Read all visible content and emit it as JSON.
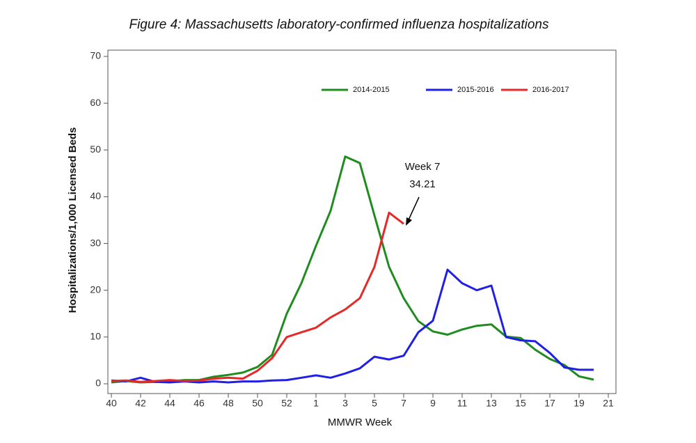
{
  "chart_data": {
    "type": "line",
    "title": "Figure 4: Massachusetts laboratory-confirmed influenza hospitalizations",
    "x_label": "MMWR Week",
    "y_label": "Hospitalizations/1,000 Licensed Beds",
    "categories": [
      40,
      null,
      42,
      null,
      44,
      null,
      46,
      null,
      48,
      null,
      50,
      null,
      52,
      null,
      1,
      null,
      3,
      null,
      5,
      null,
      7,
      null,
      9,
      null,
      11,
      null,
      13,
      null,
      15,
      null,
      17,
      null,
      19,
      null,
      21
    ],
    "series": [
      {
        "name": "2014-2015",
        "color": "#1e8c1e",
        "values": [
          0.3,
          0.6,
          0.3,
          0.4,
          0.5,
          0.8,
          0.8,
          1.5,
          1.9,
          2.4,
          3.6,
          6.2,
          15,
          21.5,
          29.5,
          37,
          48.6,
          47.2,
          36,
          25,
          18.3,
          13.4,
          11.2,
          10.5,
          11.6,
          12.4,
          12.7,
          10.1,
          9.8,
          7.3,
          5.3,
          4,
          1.6,
          0.9,
          null
        ]
      },
      {
        "name": "2015-2016",
        "color": "#1f1fe6",
        "values": [
          0.7,
          0.5,
          1.3,
          0.4,
          0.3,
          0.5,
          0.3,
          0.5,
          0.3,
          0.5,
          0.5,
          0.7,
          0.8,
          1.3,
          1.8,
          1.3,
          2.2,
          3.3,
          5.8,
          5.2,
          6,
          11,
          13.5,
          24.4,
          21.5,
          20,
          21,
          10,
          9.3,
          9.1,
          6.6,
          3.5,
          3,
          3,
          null
        ]
      },
      {
        "name": "2016-2017",
        "color": "#e62828",
        "values": [
          0.6,
          0.7,
          0.4,
          0.6,
          0.8,
          0.6,
          0.7,
          1.1,
          1.3,
          1.1,
          2.8,
          5.5,
          10,
          11,
          12,
          14.2,
          15.9,
          18.3,
          25,
          36.6,
          34.21,
          null,
          null,
          null,
          null,
          null,
          null,
          null,
          null,
          null,
          null,
          null,
          null,
          null,
          null
        ]
      }
    ],
    "ylim": [
      0,
      70
    ],
    "yticks": [
      0,
      10,
      20,
      30,
      40,
      50,
      60,
      70
    ],
    "annotation": [
      "Week 7",
      "34.21"
    ],
    "legend": "top"
  }
}
